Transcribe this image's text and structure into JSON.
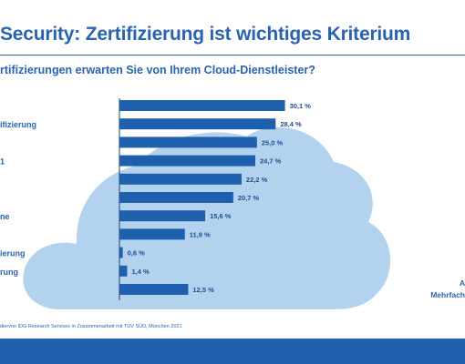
{
  "header": {
    "title": "Security: Zertifizierung ist wichtiges Kriterium",
    "question": "rtifizierungen erwarten Sie von Ihrem Cloud-Dienstleister?"
  },
  "side_note": {
    "line1": "A",
    "line2": "Mehrfach"
  },
  "source": "diervon IDG Research Services in Zusammenarbeit mit TÜV SÜD, München 2021",
  "colors": {
    "accent": "#2a63b0",
    "bar": "#1e5fae",
    "cloud": "#b3d2ee",
    "footer": "#1e5fae"
  },
  "chart_data": {
    "type": "bar",
    "orientation": "horizontal",
    "categories": [
      "",
      "ifizierung",
      "",
      "1",
      "",
      "",
      "ne",
      "",
      "ierung",
      "rung",
      ""
    ],
    "values": [
      30.1,
      28.4,
      25.0,
      24.7,
      22.2,
      20.7,
      15.6,
      11.9,
      0.6,
      1.4,
      12.5
    ],
    "value_labels": [
      "30,1 %",
      "28,4 %",
      "25,0 %",
      "24,7 %",
      "22,2 %",
      "20,7 %",
      "15,6 %",
      "11,9 %",
      "0,6 %",
      "1,4 %",
      "12,5 %"
    ],
    "xlim": [
      0,
      31
    ],
    "unit": "%",
    "grid": false,
    "legend": "none"
  }
}
